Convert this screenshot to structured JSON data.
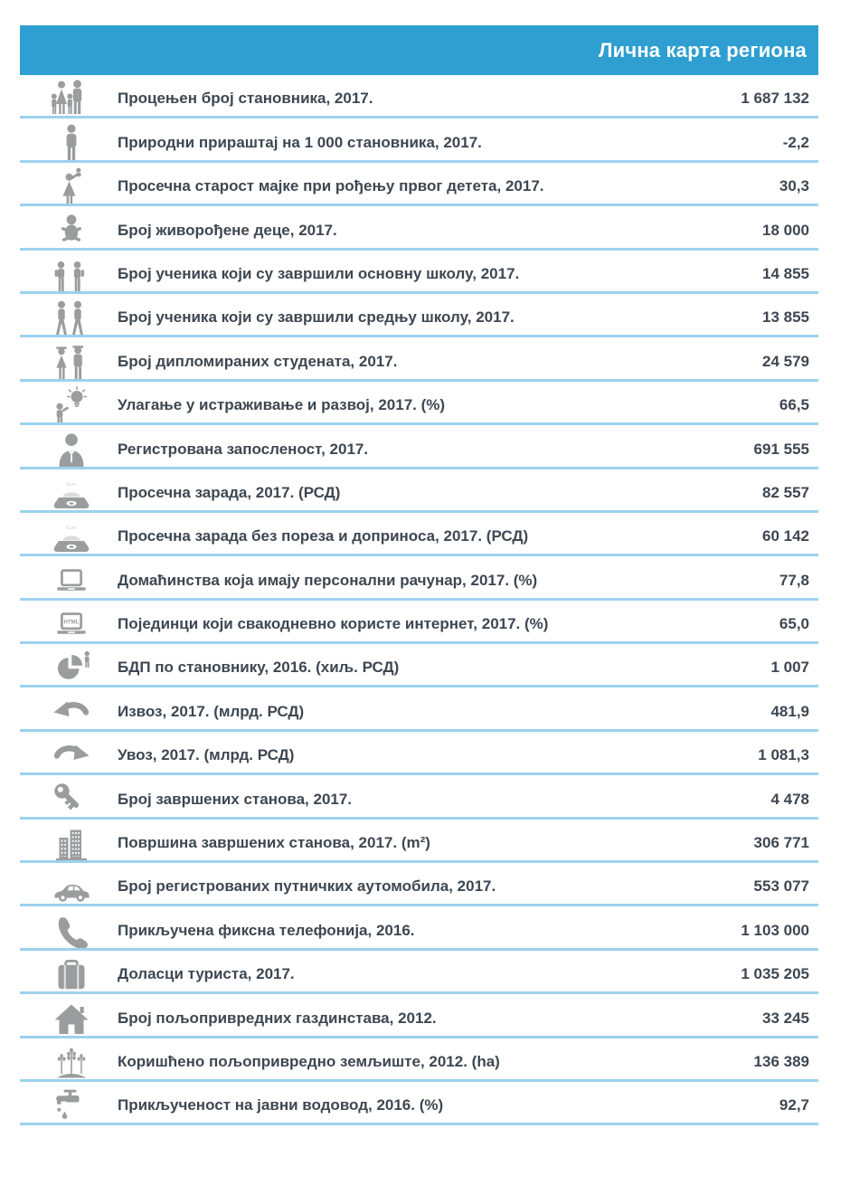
{
  "header": {
    "title": "Лична карта региона",
    "bg_color": "#2E9FD0",
    "text_color": "#FFFFFF"
  },
  "colors": {
    "divider": "#9CD2EE",
    "icon": "#9B9C9E",
    "text": "#3E4751"
  },
  "table": {
    "rows": [
      {
        "icon": "family",
        "label": "Процењен број становника, 2017.",
        "value": "1 687 132"
      },
      {
        "icon": "person",
        "label": "Природни прираштај на 1 000 становника, 2017.",
        "value": "-2,2"
      },
      {
        "icon": "mother-baby",
        "label": "Просечна старост мајке при рођењу првог детета, 2017.",
        "value": "30,3"
      },
      {
        "icon": "baby",
        "label": "Број живорођене деце, 2017.",
        "value": "18 000"
      },
      {
        "icon": "pupils",
        "label": "Број ученика који су завршили основну школу, 2017.",
        "value": "14 855"
      },
      {
        "icon": "students",
        "label": "Број ученика који су завршили средњу школу, 2017.",
        "value": "13 855"
      },
      {
        "icon": "graduates",
        "label": "Број дипломираних студената, 2017.",
        "value": "24 579"
      },
      {
        "icon": "research",
        "label": "Улагање у истраживање и развој, 2017. (%)",
        "value": "66,5"
      },
      {
        "icon": "employee",
        "label": "Регистрована запосленост, 2017.",
        "value": "691 555"
      },
      {
        "icon": "salary",
        "label": "Просечна зарада, 2017. (РСД)",
        "value": "82 557"
      },
      {
        "icon": "net-salary",
        "label": "Просечна зарада без пореза и доприноса, 2017. (РСД)",
        "value": "60 142"
      },
      {
        "icon": "laptop",
        "label": "Домаћинства која имају персонални рачунар, 2017. (%)",
        "value": "77,8"
      },
      {
        "icon": "laptop-html",
        "label": "Појединци који свакодневно користе интернет, 2017. (%)",
        "value": "65,0"
      },
      {
        "icon": "gdp-pie",
        "label": "БДП по становнику, 2016. (хиљ. РСД)",
        "value": "1 007"
      },
      {
        "icon": "export-arrow",
        "label": "Извоз, 2017. (млрд. РСД)",
        "value": "481,9"
      },
      {
        "icon": "import-arrow",
        "label": "Увоз, 2017. (млрд. РСД)",
        "value": "1 081,3"
      },
      {
        "icon": "key",
        "label": "Број завршених станова, 2017.",
        "value": "4 478"
      },
      {
        "icon": "buildings",
        "label": "Површина завршених станова, 2017. (m²)",
        "value": "306 771"
      },
      {
        "icon": "car",
        "label": "Број регистрованих путничких аутомобила, 2017.",
        "value": "553 077"
      },
      {
        "icon": "phone",
        "label": "Прикључена фиксна телефонија, 2016.",
        "value": "1 103 000"
      },
      {
        "icon": "suitcase",
        "label": "Доласци туриста, 2017.",
        "value": "1 035 205"
      },
      {
        "icon": "house",
        "label": "Број пољопривредних газдинстава, 2012.",
        "value": "33 245"
      },
      {
        "icon": "farmland",
        "label": "Коришћено пољопривредно земљиште, 2012. (ha)",
        "value": "136 389"
      },
      {
        "icon": "water-tap",
        "label": "Прикљученост на јавни водовод, 2016. (%)",
        "value": "92,7"
      }
    ]
  }
}
